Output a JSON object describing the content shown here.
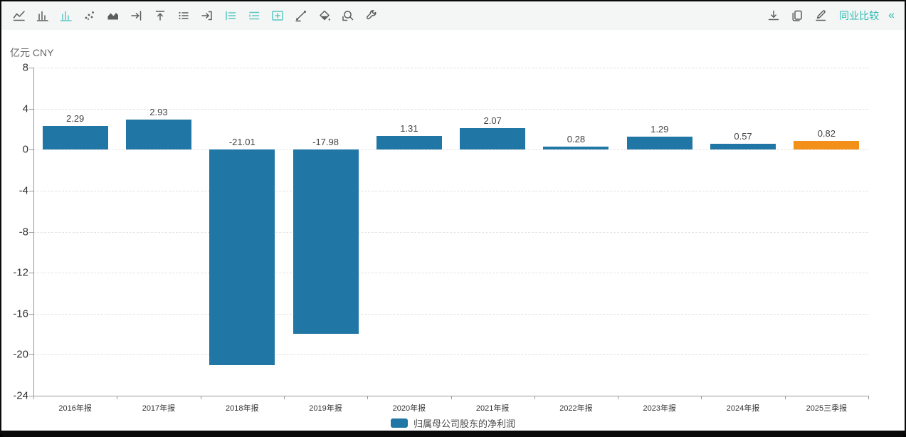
{
  "header": {
    "compare_label": "同业比较",
    "collapse_icon": "«"
  },
  "toolbar": {
    "left_icons": [
      {
        "name": "line-chart-icon",
        "active": false
      },
      {
        "name": "column-chart-icon",
        "active": false
      },
      {
        "name": "column-chart-active-icon",
        "active": true
      },
      {
        "name": "scatter-chart-icon",
        "active": false
      },
      {
        "name": "area-chart-icon",
        "active": false
      },
      {
        "name": "arrow-right-to-bar-icon",
        "active": false
      },
      {
        "name": "arrow-up-to-bar-icon",
        "active": false
      },
      {
        "name": "dotted-list-icon",
        "active": false
      },
      {
        "name": "arrow-right-box-icon",
        "active": false
      },
      {
        "name": "list-left-icon",
        "active": true
      },
      {
        "name": "list-indent-icon",
        "active": true
      },
      {
        "name": "plus-box-icon",
        "active": true
      },
      {
        "name": "draw-line-icon",
        "active": false
      },
      {
        "name": "paint-diamond-icon",
        "active": false
      },
      {
        "name": "zoom-area-icon",
        "active": false
      },
      {
        "name": "wrench-icon",
        "active": false
      }
    ],
    "right_icons": [
      "download-icon",
      "copy-icon",
      "edit-icon"
    ]
  },
  "chart_data": {
    "type": "bar",
    "unit_label": "亿元 CNY",
    "categories": [
      "2016年报",
      "2017年报",
      "2018年报",
      "2019年报",
      "2020年报",
      "2021年报",
      "2022年报",
      "2023年报",
      "2024年报",
      "2025三季报"
    ],
    "values": [
      2.29,
      2.93,
      -21.01,
      -17.98,
      1.31,
      2.07,
      0.28,
      1.29,
      0.57,
      0.82
    ],
    "bar_colors": [
      "#2077A5",
      "#2077A5",
      "#2077A5",
      "#2077A5",
      "#2077A5",
      "#2077A5",
      "#2077A5",
      "#2077A5",
      "#2077A5",
      "#F39019"
    ],
    "ylim": [
      -24,
      8
    ],
    "ytick_step": 4,
    "grid": "dashed-horizontal",
    "legend": [
      {
        "label": "归属母公司股东的净利润",
        "color": "#2077A5"
      }
    ],
    "legend_position": "bottom-center"
  }
}
